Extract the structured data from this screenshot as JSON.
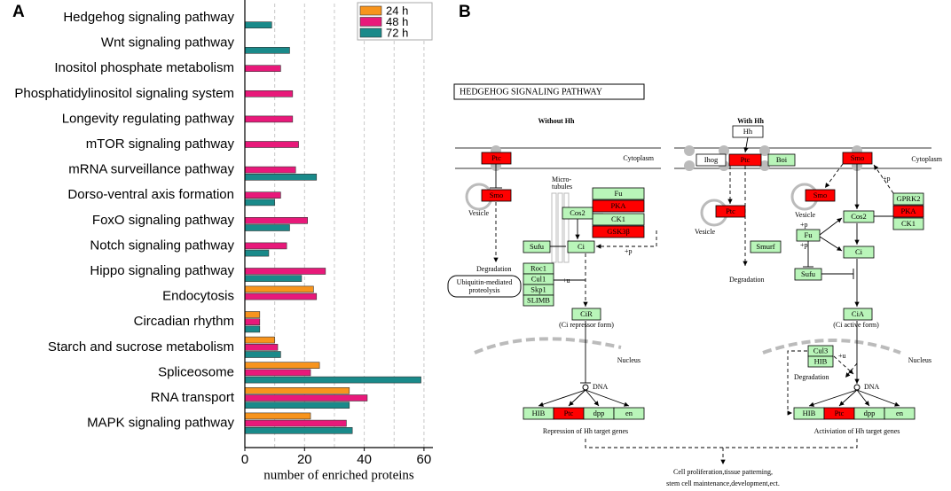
{
  "panel_labels": [
    "A",
    "B"
  ],
  "chart_data": {
    "type": "barh",
    "xlabel": "number of enriched proteins",
    "categories": [
      "Hedgehog signaling pathway",
      "Wnt signaling pathway",
      "Inositol phosphate metabolism",
      "Phosphatidylinositol signaling system",
      "Longevity regulating pathway",
      "mTOR signaling pathway",
      "mRNA surveillance pathway",
      "Dorso-ventral axis formation",
      "FoxO signaling pathway",
      "Notch signaling pathway",
      "Hippo signaling pathway",
      "Endocytosis",
      "Circadian rhythm",
      "Starch and sucrose metabolism",
      "Spliceosome",
      "RNA transport",
      "MAPK signaling pathway"
    ],
    "series": [
      {
        "name": "24 h",
        "color": "#f7941d",
        "values": [
          null,
          null,
          null,
          null,
          null,
          null,
          null,
          null,
          null,
          null,
          null,
          23,
          5,
          10,
          25,
          35,
          22
        ]
      },
      {
        "name": "48 h",
        "color": "#e8197a",
        "values": [
          null,
          null,
          12,
          16,
          16,
          18,
          17,
          12,
          21,
          14,
          27,
          24,
          5,
          11,
          22,
          41,
          34
        ]
      },
      {
        "name": "72 h",
        "color": "#1a8a8a",
        "values": [
          9,
          15,
          null,
          null,
          null,
          null,
          24,
          10,
          15,
          8,
          19,
          null,
          5,
          12,
          59,
          35,
          36
        ]
      }
    ],
    "xlim": [
      0,
      63
    ],
    "xticks": [
      0,
      20,
      40,
      60
    ],
    "xgrid": [
      10,
      20,
      30,
      40,
      50,
      60
    ],
    "legend": "upper right"
  },
  "diagram": {
    "title": "HEDGEHOG SIGNALING PATHWAY",
    "nodes": [
      {
        "label": "Ptc",
        "fill": "#ff0000"
      },
      {
        "label": "Smo",
        "fill": "#ff0000"
      },
      {
        "label": "Fu",
        "fill": "#b9f5b9"
      },
      {
        "label": "PKA",
        "fill": "#ff0000"
      },
      {
        "label": "CK1",
        "fill": "#b9f5b9"
      },
      {
        "label": "GSK3β",
        "fill": "#ff0000"
      },
      {
        "label": "Cos2",
        "fill": "#b9f5b9"
      },
      {
        "label": "Sufu",
        "fill": "#b9f5b9"
      },
      {
        "label": "Ci",
        "fill": "#b9f5b9"
      },
      {
        "label": "Roc1",
        "fill": "#b9f5b9"
      },
      {
        "label": "Cul1",
        "fill": "#b9f5b9"
      },
      {
        "label": "Skp1",
        "fill": "#b9f5b9"
      },
      {
        "label": "SLIMB",
        "fill": "#b9f5b9"
      },
      {
        "label": "CiR",
        "fill": "#b9f5b9"
      },
      {
        "label": "HIB",
        "fill": "#b9f5b9"
      },
      {
        "label": "Ptc",
        "fill": "#ff0000"
      },
      {
        "label": "dpp",
        "fill": "#b9f5b9"
      },
      {
        "label": "en",
        "fill": "#b9f5b9"
      },
      {
        "label": "Hh",
        "fill": "#ffffff"
      },
      {
        "label": "Ihog",
        "fill": "#ffffff"
      },
      {
        "label": "Ptc",
        "fill": "#ff0000"
      },
      {
        "label": "Boi",
        "fill": "#b9f5b9"
      },
      {
        "label": "Smo",
        "fill": "#ff0000"
      },
      {
        "label": "Ptc",
        "fill": "#ff0000"
      },
      {
        "label": "Smurf",
        "fill": "#b9f5b9"
      },
      {
        "label": "Smo",
        "fill": "#ff0000"
      },
      {
        "label": "GPRK2",
        "fill": "#b9f5b9"
      },
      {
        "label": "PKA",
        "fill": "#ff0000"
      },
      {
        "label": "CK1",
        "fill": "#b9f5b9"
      },
      {
        "label": "Cos2",
        "fill": "#b9f5b9"
      },
      {
        "label": "Fu",
        "fill": "#b9f5b9"
      },
      {
        "label": "Ci",
        "fill": "#b9f5b9"
      },
      {
        "label": "Sufu",
        "fill": "#b9f5b9"
      },
      {
        "label": "CiA",
        "fill": "#b9f5b9"
      },
      {
        "label": "Cul3",
        "fill": "#b9f5b9"
      },
      {
        "label": "HIB",
        "fill": "#b9f5b9"
      },
      {
        "label": "HIB",
        "fill": "#b9f5b9"
      },
      {
        "label": "Ptc",
        "fill": "#ff0000"
      },
      {
        "label": "dpp",
        "fill": "#b9f5b9"
      },
      {
        "label": "en",
        "fill": "#b9f5b9"
      }
    ],
    "labels": [
      "Without Hh",
      "With Hh",
      "Cytoplasm",
      "Vesicle",
      "Degradation",
      "Micro-",
      "tubules",
      "+p",
      "Ubiquitin-mediated",
      "proteolysis",
      "+u",
      "(Ci repressor form)",
      "Nucleus",
      "DNA",
      "Repression of Hh target genes",
      "Cytoplasm",
      "+p",
      "Vesicle",
      "Vesicle",
      "Degradation",
      "+p",
      "+p",
      "(Ci active form)",
      "+u",
      "Degradation",
      "DNA",
      "Nucleus",
      "Activiation  of Hh target genes",
      "Cell proliferation,tissue patterning,",
      "stem cell maintenance,development,ect."
    ]
  }
}
